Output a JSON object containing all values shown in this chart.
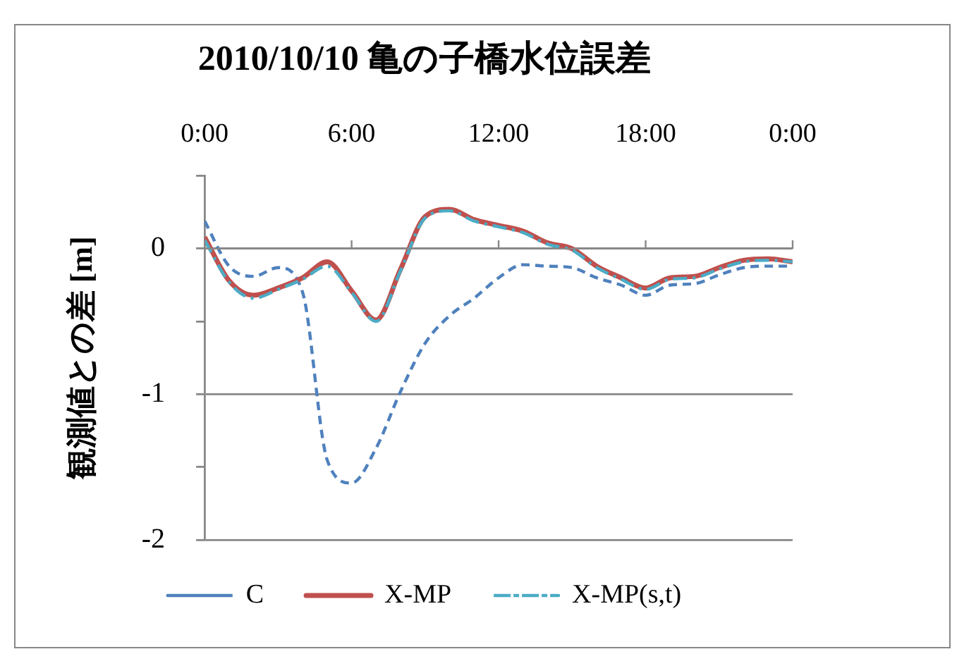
{
  "chart_data": {
    "type": "line",
    "title": "2010/10/10 亀の子橋水位誤差",
    "ylabel": "観測値との差 [m]",
    "x": [
      0,
      1,
      2,
      3,
      4,
      5,
      6,
      7,
      8,
      9,
      10,
      11,
      12,
      13,
      14,
      15,
      16,
      17,
      18,
      19,
      20,
      21,
      22,
      23,
      24
    ],
    "xlim": [
      0,
      24
    ],
    "xticks": [
      {
        "value": 0,
        "label": "0:00"
      },
      {
        "value": 6,
        "label": "6:00"
      },
      {
        "value": 12,
        "label": "12:00"
      },
      {
        "value": 18,
        "label": "18:00"
      },
      {
        "value": 24,
        "label": "0:00"
      }
    ],
    "ylim": [
      -2,
      0.5
    ],
    "yticks": [
      -2,
      {
        "value": -1.5,
        "label": null
      },
      -1,
      {
        "value": -0.5,
        "label": null
      },
      0,
      {
        "value": 0.5,
        "label": null
      }
    ],
    "grid": "y",
    "legend": "bottom",
    "marker": "none",
    "series": [
      {
        "name": "C",
        "color": "#4f81bd",
        "line_style": "dashed",
        "values": [
          0.19,
          -0.12,
          -0.19,
          -0.13,
          -0.3,
          -1.45,
          -1.61,
          -1.37,
          -0.98,
          -0.65,
          -0.46,
          -0.34,
          -0.2,
          -0.11,
          -0.12,
          -0.13,
          -0.2,
          -0.25,
          -0.32,
          -0.25,
          -0.24,
          -0.18,
          -0.13,
          -0.12,
          -0.12
        ]
      },
      {
        "name": "X-MP",
        "color": "#c0504d",
        "line_style": "solid",
        "values": [
          0.08,
          -0.22,
          -0.32,
          -0.27,
          -0.2,
          -0.09,
          -0.29,
          -0.49,
          -0.14,
          0.22,
          0.27,
          0.2,
          0.16,
          0.12,
          0.04,
          0.0,
          -0.12,
          -0.2,
          -0.27,
          -0.2,
          -0.19,
          -0.13,
          -0.08,
          -0.07,
          -0.09
        ]
      },
      {
        "name": "X-MP(s,t)",
        "color": "#4bacc6",
        "line_style": "dashdot",
        "values": [
          0.06,
          -0.23,
          -0.34,
          -0.28,
          -0.21,
          -0.12,
          -0.3,
          -0.5,
          -0.15,
          0.21,
          0.26,
          0.19,
          0.15,
          0.11,
          0.03,
          -0.01,
          -0.13,
          -0.21,
          -0.28,
          -0.21,
          -0.2,
          -0.14,
          -0.09,
          -0.08,
          -0.09
        ]
      }
    ]
  }
}
